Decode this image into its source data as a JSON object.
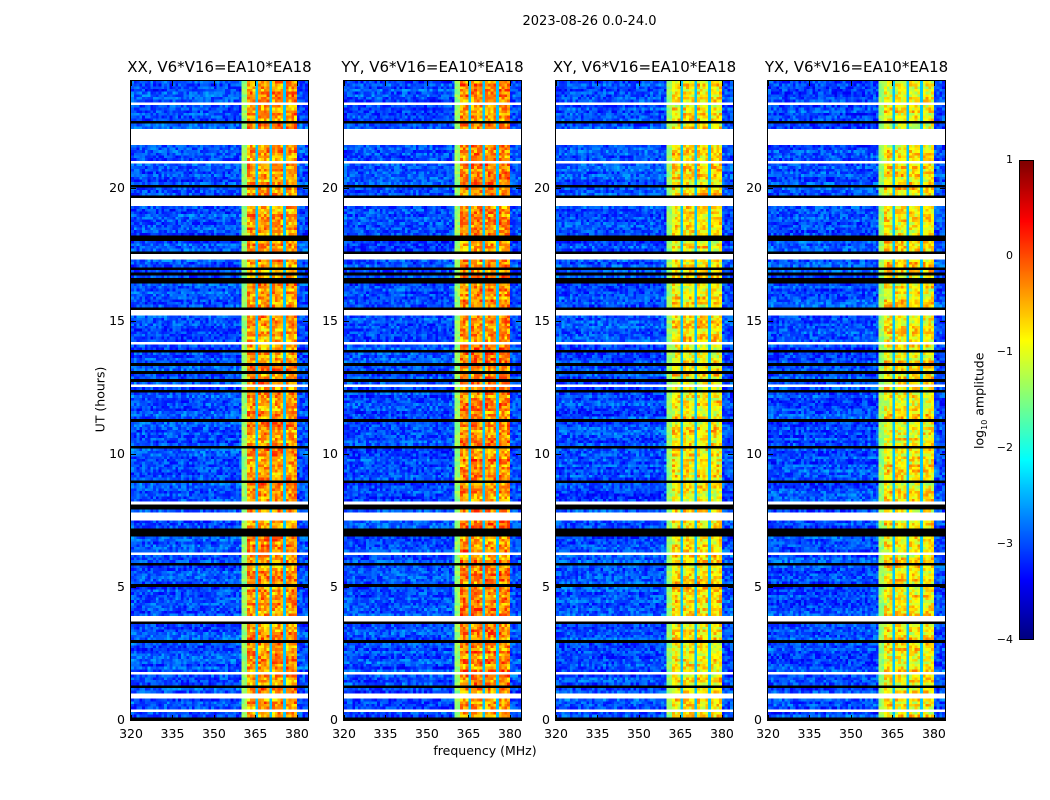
{
  "suptitle": "2023-08-26 0.0-24.0",
  "chart_data": {
    "type": "heatmap",
    "title": "2023-08-26 0.0-24.0",
    "xlabel": "frequency (MHz)",
    "ylabel": "UT (hours)",
    "xlim": [
      320,
      384
    ],
    "ylim": [
      0,
      24
    ],
    "xticks": [
      "320",
      "335",
      "350",
      "365",
      "380"
    ],
    "xtick_values": [
      320,
      335,
      350,
      365,
      380
    ],
    "yticks": [
      "0",
      "5",
      "10",
      "15",
      "20"
    ],
    "ytick_values": [
      0,
      5,
      10,
      15,
      20
    ],
    "panels": [
      {
        "title": "XX, V6*V16=EA10*EA18",
        "band_level": -0.4
      },
      {
        "title": "YY, V6*V16=EA10*EA18",
        "band_level": -0.3
      },
      {
        "title": "XY, V6*V16=EA10*EA18",
        "band_level": -0.8
      },
      {
        "title": "YX, V6*V16=EA10*EA18",
        "band_level": -0.8
      }
    ],
    "background_level": -3.0,
    "rfi_band_mhz": [
      360.5,
      380
    ],
    "flagged_hours": [
      [
        23.1,
        23.2
      ],
      [
        21.6,
        22.2
      ],
      [
        20.9,
        21.0
      ],
      [
        19.3,
        19.6
      ],
      [
        17.3,
        17.5
      ],
      [
        15.2,
        15.4
      ],
      [
        14.1,
        14.2
      ],
      [
        12.5,
        12.6
      ],
      [
        8.1,
        8.2
      ],
      [
        7.5,
        7.8
      ],
      [
        6.2,
        6.3
      ],
      [
        3.7,
        3.9
      ],
      [
        1.7,
        1.8
      ],
      [
        0.8,
        1.0
      ],
      [
        0.3,
        0.4
      ]
    ],
    "colorbar": {
      "label": "log10 amplitude",
      "label_main": "log",
      "label_sub": "10",
      "label_rest": " amplitude",
      "ticks": [
        "1",
        "0",
        "−1",
        "−2",
        "−3",
        "−4"
      ],
      "tick_values": [
        1,
        0,
        -1,
        -2,
        -3,
        -4
      ],
      "range": [
        -4,
        1
      ],
      "colormap": "jet"
    }
  }
}
